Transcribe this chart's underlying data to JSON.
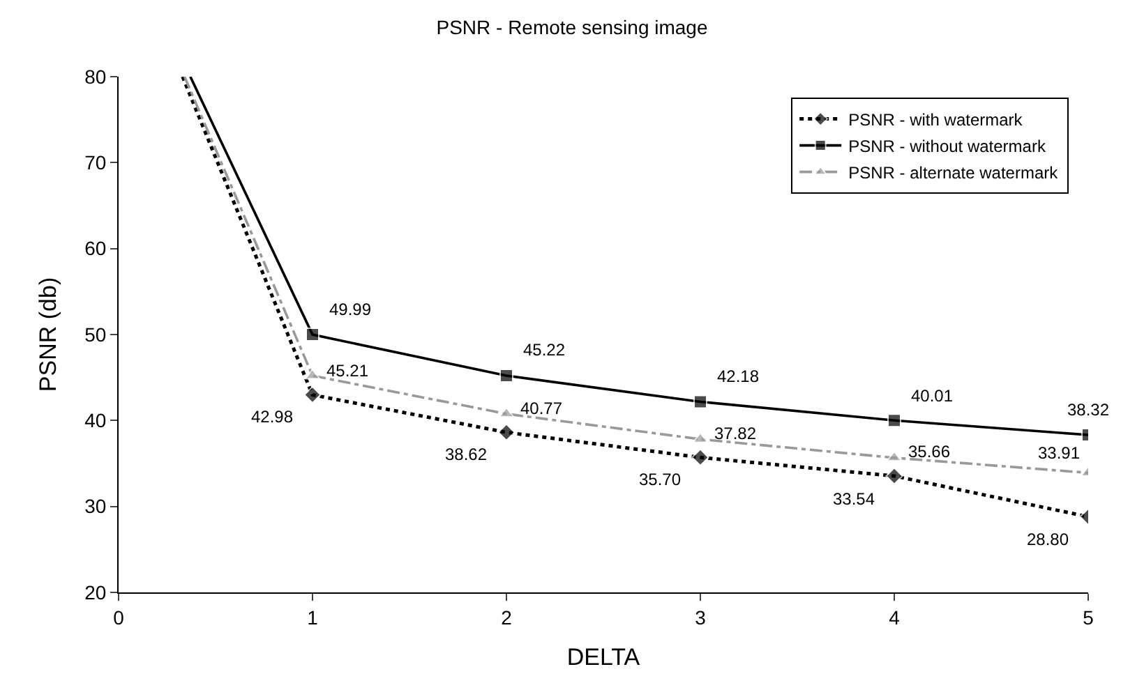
{
  "chart_data": {
    "type": "line",
    "title": "PSNR - Remote sensing image",
    "xlabel": "DELTA",
    "ylabel": "PSNR (db)",
    "xlim": [
      0,
      5
    ],
    "xticks": [
      0,
      1,
      2,
      3,
      4,
      5
    ],
    "ylim": [
      20,
      80
    ],
    "yticks": [
      20,
      30,
      40,
      50,
      60,
      70,
      80
    ],
    "legend": "top right",
    "series": [
      {
        "name": "PSNR - with watermark",
        "color": "#000000",
        "x": [
          0.33,
          1,
          2,
          3,
          4,
          5
        ],
        "values": [
          80,
          42.98,
          38.62,
          35.7,
          33.54,
          28.8
        ],
        "value_labels": [
          null,
          "42.98",
          "38.62",
          "35.70",
          "33.54",
          "28.80"
        ],
        "marker": "diamond",
        "line_style": "dotted"
      },
      {
        "name": "PSNR - without watermark",
        "color": "#000000",
        "x": [
          0.37,
          1,
          2,
          3,
          4,
          5
        ],
        "values": [
          80,
          49.99,
          45.22,
          42.18,
          40.01,
          38.32
        ],
        "value_labels": [
          null,
          "49.99",
          "45.22",
          "42.18",
          "40.01",
          "38.32"
        ],
        "marker": "square",
        "line_style": "solid"
      },
      {
        "name": "PSNR - alternate watermark",
        "color": "#999999",
        "x": [
          0.34,
          1,
          2,
          3,
          4,
          5
        ],
        "values": [
          80,
          45.21,
          40.77,
          37.82,
          35.66,
          33.91
        ],
        "value_labels": [
          null,
          "45.21",
          "40.77",
          "37.82",
          "35.66",
          "33.91"
        ],
        "marker": "triangle",
        "line_style": "dashdot"
      }
    ]
  }
}
